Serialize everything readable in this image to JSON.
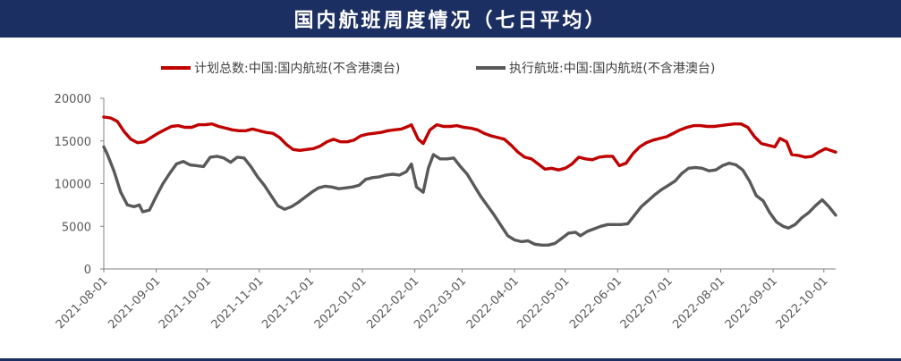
{
  "header": {
    "title": "国内航班周度情况（七日平均）"
  },
  "colors": {
    "banner": "#1c2f63",
    "planned": "#c00000",
    "executed": "#595959"
  },
  "chart_data": {
    "type": "line",
    "title": "国内航班周度情况（七日平均）",
    "xlabel": "",
    "ylabel": "",
    "ylim": [
      0,
      20000
    ],
    "yticks": [
      0,
      5000,
      10000,
      15000,
      20000
    ],
    "yticklabels": [
      "0",
      "5000",
      "10000",
      "15000",
      "20000"
    ],
    "xlim": [
      "2021-08-01",
      "2022-10-08"
    ],
    "xticks": [
      "2021-08-01",
      "2021-09-01",
      "2021-10-01",
      "2021-11-01",
      "2021-12-01",
      "2022-01-01",
      "2022-02-01",
      "2022-03-01",
      "2022-04-01",
      "2022-05-01",
      "2022-06-01",
      "2022-07-01",
      "2022-08-01",
      "2022-09-01",
      "2022-10-01"
    ],
    "grid": false,
    "legend_position": "top",
    "series": [
      {
        "name": "计划总数:中国:国内航班(不含港澳台)",
        "color": "#c00000",
        "points": [
          [
            "2021-08-01",
            17800
          ],
          [
            "2021-08-05",
            17700
          ],
          [
            "2021-08-09",
            17300
          ],
          [
            "2021-08-13",
            16100
          ],
          [
            "2021-08-17",
            15200
          ],
          [
            "2021-08-21",
            14800
          ],
          [
            "2021-08-25",
            14900
          ],
          [
            "2021-08-29",
            15400
          ],
          [
            "2021-09-02",
            15900
          ],
          [
            "2021-09-06",
            16300
          ],
          [
            "2021-09-10",
            16700
          ],
          [
            "2021-09-14",
            16800
          ],
          [
            "2021-09-18",
            16600
          ],
          [
            "2021-09-22",
            16600
          ],
          [
            "2021-09-26",
            16900
          ],
          [
            "2021-09-30",
            16900
          ],
          [
            "2021-10-04",
            17000
          ],
          [
            "2021-10-08",
            16700
          ],
          [
            "2021-10-12",
            16500
          ],
          [
            "2021-10-16",
            16300
          ],
          [
            "2021-10-20",
            16200
          ],
          [
            "2021-10-24",
            16200
          ],
          [
            "2021-10-28",
            16400
          ],
          [
            "2021-11-01",
            16200
          ],
          [
            "2021-11-05",
            16000
          ],
          [
            "2021-11-09",
            15900
          ],
          [
            "2021-11-13",
            15400
          ],
          [
            "2021-11-17",
            14600
          ],
          [
            "2021-11-21",
            14000
          ],
          [
            "2021-11-25",
            13900
          ],
          [
            "2021-11-29",
            14000
          ],
          [
            "2021-12-03",
            14100
          ],
          [
            "2021-12-07",
            14400
          ],
          [
            "2021-12-11",
            14900
          ],
          [
            "2021-12-15",
            15200
          ],
          [
            "2021-12-19",
            14900
          ],
          [
            "2021-12-23",
            14900
          ],
          [
            "2021-12-27",
            15100
          ],
          [
            "2021-12-31",
            15600
          ],
          [
            "2022-01-04",
            15800
          ],
          [
            "2022-01-08",
            15900
          ],
          [
            "2022-01-12",
            16000
          ],
          [
            "2022-01-16",
            16200
          ],
          [
            "2022-01-20",
            16300
          ],
          [
            "2022-01-24",
            16400
          ],
          [
            "2022-01-28",
            16700
          ],
          [
            "2022-01-30",
            16900
          ],
          [
            "2022-02-03",
            15200
          ],
          [
            "2022-02-06",
            14700
          ],
          [
            "2022-02-10",
            16300
          ],
          [
            "2022-02-14",
            16900
          ],
          [
            "2022-02-18",
            16700
          ],
          [
            "2022-02-22",
            16700
          ],
          [
            "2022-02-26",
            16800
          ],
          [
            "2022-03-02",
            16600
          ],
          [
            "2022-03-06",
            16500
          ],
          [
            "2022-03-10",
            16300
          ],
          [
            "2022-03-14",
            15900
          ],
          [
            "2022-03-18",
            15600
          ],
          [
            "2022-03-22",
            15400
          ],
          [
            "2022-03-26",
            15200
          ],
          [
            "2022-03-30",
            14500
          ],
          [
            "2022-04-03",
            13700
          ],
          [
            "2022-04-07",
            13100
          ],
          [
            "2022-04-11",
            12900
          ],
          [
            "2022-04-15",
            12300
          ],
          [
            "2022-04-19",
            11700
          ],
          [
            "2022-04-23",
            11800
          ],
          [
            "2022-04-27",
            11600
          ],
          [
            "2022-05-01",
            11800
          ],
          [
            "2022-05-05",
            12300
          ],
          [
            "2022-05-09",
            13100
          ],
          [
            "2022-05-13",
            12900
          ],
          [
            "2022-05-17",
            12800
          ],
          [
            "2022-05-21",
            13100
          ],
          [
            "2022-05-25",
            13200
          ],
          [
            "2022-05-29",
            13200
          ],
          [
            "2022-06-02",
            12100
          ],
          [
            "2022-06-06",
            12400
          ],
          [
            "2022-06-10",
            13500
          ],
          [
            "2022-06-14",
            14300
          ],
          [
            "2022-06-18",
            14800
          ],
          [
            "2022-06-22",
            15100
          ],
          [
            "2022-06-26",
            15300
          ],
          [
            "2022-06-30",
            15500
          ],
          [
            "2022-07-04",
            15900
          ],
          [
            "2022-07-08",
            16300
          ],
          [
            "2022-07-12",
            16600
          ],
          [
            "2022-07-16",
            16800
          ],
          [
            "2022-07-20",
            16800
          ],
          [
            "2022-07-24",
            16700
          ],
          [
            "2022-07-28",
            16700
          ],
          [
            "2022-08-01",
            16800
          ],
          [
            "2022-08-05",
            16900
          ],
          [
            "2022-08-09",
            17000
          ],
          [
            "2022-08-13",
            17000
          ],
          [
            "2022-08-17",
            16600
          ],
          [
            "2022-08-21",
            15500
          ],
          [
            "2022-08-25",
            14700
          ],
          [
            "2022-08-29",
            14500
          ],
          [
            "2022-09-02",
            14300
          ],
          [
            "2022-09-05",
            15300
          ],
          [
            "2022-09-09",
            14900
          ],
          [
            "2022-09-12",
            13400
          ],
          [
            "2022-09-16",
            13300
          ],
          [
            "2022-09-20",
            13100
          ],
          [
            "2022-09-24",
            13200
          ],
          [
            "2022-09-28",
            13700
          ],
          [
            "2022-10-02",
            14100
          ],
          [
            "2022-10-05",
            13900
          ],
          [
            "2022-10-08",
            13700
          ]
        ]
      },
      {
        "name": "执行航班:中国:国内航班(不含港澳台)",
        "color": "#595959",
        "points": [
          [
            "2021-08-01",
            14300
          ],
          [
            "2021-08-03",
            13500
          ],
          [
            "2021-08-07",
            11500
          ],
          [
            "2021-08-11",
            9000
          ],
          [
            "2021-08-15",
            7500
          ],
          [
            "2021-08-19",
            7300
          ],
          [
            "2021-08-22",
            7500
          ],
          [
            "2021-08-24",
            6700
          ],
          [
            "2021-08-28",
            6900
          ],
          [
            "2021-09-01",
            8500
          ],
          [
            "2021-09-05",
            10000
          ],
          [
            "2021-09-09",
            11200
          ],
          [
            "2021-09-13",
            12300
          ],
          [
            "2021-09-17",
            12600
          ],
          [
            "2021-09-21",
            12200
          ],
          [
            "2021-09-25",
            12100
          ],
          [
            "2021-09-29",
            12000
          ],
          [
            "2021-10-03",
            13100
          ],
          [
            "2021-10-07",
            13200
          ],
          [
            "2021-10-11",
            13000
          ],
          [
            "2021-10-15",
            12500
          ],
          [
            "2021-10-19",
            13100
          ],
          [
            "2021-10-23",
            13000
          ],
          [
            "2021-10-27",
            12000
          ],
          [
            "2021-10-31",
            10800
          ],
          [
            "2021-11-04",
            9800
          ],
          [
            "2021-11-08",
            8600
          ],
          [
            "2021-11-12",
            7400
          ],
          [
            "2021-11-16",
            7000
          ],
          [
            "2021-11-20",
            7300
          ],
          [
            "2021-11-24",
            7800
          ],
          [
            "2021-11-28",
            8400
          ],
          [
            "2021-12-02",
            9000
          ],
          [
            "2021-12-06",
            9500
          ],
          [
            "2021-12-10",
            9700
          ],
          [
            "2021-12-14",
            9600
          ],
          [
            "2021-12-18",
            9400
          ],
          [
            "2021-12-22",
            9500
          ],
          [
            "2021-12-26",
            9600
          ],
          [
            "2021-12-30",
            9800
          ],
          [
            "2022-01-03",
            10500
          ],
          [
            "2022-01-07",
            10700
          ],
          [
            "2022-01-11",
            10800
          ],
          [
            "2022-01-15",
            11000
          ],
          [
            "2022-01-19",
            11100
          ],
          [
            "2022-01-23",
            11000
          ],
          [
            "2022-01-27",
            11400
          ],
          [
            "2022-01-30",
            12300
          ],
          [
            "2022-02-02",
            9600
          ],
          [
            "2022-02-06",
            9000
          ],
          [
            "2022-02-09",
            11800
          ],
          [
            "2022-02-12",
            13400
          ],
          [
            "2022-02-16",
            12900
          ],
          [
            "2022-02-20",
            12900
          ],
          [
            "2022-02-24",
            13000
          ],
          [
            "2022-02-28",
            12000
          ],
          [
            "2022-03-04",
            11100
          ],
          [
            "2022-03-08",
            9800
          ],
          [
            "2022-03-12",
            8500
          ],
          [
            "2022-03-16",
            7400
          ],
          [
            "2022-03-20",
            6300
          ],
          [
            "2022-03-24",
            5100
          ],
          [
            "2022-03-28",
            3900
          ],
          [
            "2022-04-01",
            3400
          ],
          [
            "2022-04-05",
            3200
          ],
          [
            "2022-04-09",
            3300
          ],
          [
            "2022-04-13",
            2900
          ],
          [
            "2022-04-17",
            2800
          ],
          [
            "2022-04-21",
            2800
          ],
          [
            "2022-04-25",
            3000
          ],
          [
            "2022-04-29",
            3600
          ],
          [
            "2022-05-03",
            4200
          ],
          [
            "2022-05-07",
            4300
          ],
          [
            "2022-05-10",
            3900
          ],
          [
            "2022-05-14",
            4400
          ],
          [
            "2022-05-18",
            4700
          ],
          [
            "2022-05-22",
            5000
          ],
          [
            "2022-05-26",
            5200
          ],
          [
            "2022-05-30",
            5200
          ],
          [
            "2022-06-03",
            5200
          ],
          [
            "2022-06-07",
            5300
          ],
          [
            "2022-06-11",
            6300
          ],
          [
            "2022-06-15",
            7300
          ],
          [
            "2022-06-19",
            8000
          ],
          [
            "2022-06-23",
            8700
          ],
          [
            "2022-06-27",
            9300
          ],
          [
            "2022-07-01",
            9800
          ],
          [
            "2022-07-05",
            10300
          ],
          [
            "2022-07-09",
            11200
          ],
          [
            "2022-07-13",
            11800
          ],
          [
            "2022-07-17",
            11900
          ],
          [
            "2022-07-21",
            11800
          ],
          [
            "2022-07-25",
            11500
          ],
          [
            "2022-07-29",
            11600
          ],
          [
            "2022-08-02",
            12100
          ],
          [
            "2022-08-06",
            12400
          ],
          [
            "2022-08-10",
            12200
          ],
          [
            "2022-08-14",
            11600
          ],
          [
            "2022-08-18",
            10300
          ],
          [
            "2022-08-22",
            8600
          ],
          [
            "2022-08-26",
            8000
          ],
          [
            "2022-08-30",
            6600
          ],
          [
            "2022-09-03",
            5500
          ],
          [
            "2022-09-07",
            5000
          ],
          [
            "2022-09-10",
            4800
          ],
          [
            "2022-09-14",
            5200
          ],
          [
            "2022-09-18",
            6000
          ],
          [
            "2022-09-22",
            6600
          ],
          [
            "2022-09-26",
            7400
          ],
          [
            "2022-09-30",
            8100
          ],
          [
            "2022-10-04",
            7300
          ],
          [
            "2022-10-08",
            6300
          ]
        ]
      }
    ]
  }
}
